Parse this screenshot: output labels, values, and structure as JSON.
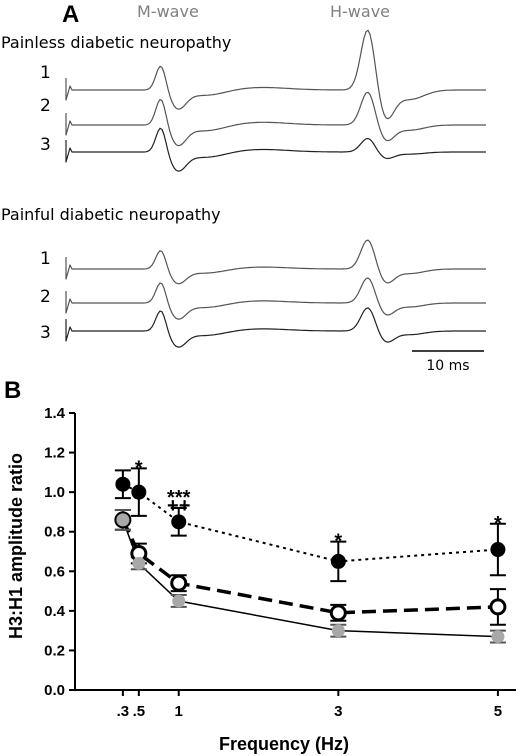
{
  "panel_a": {
    "letter": "A",
    "m_wave_label": "M-wave",
    "h_wave_label": "H-wave",
    "painless_title": "Painless diabetic neuropathy",
    "painful_title": "Painful diabetic neuropathy",
    "trace_numbers": [
      "1",
      "2",
      "3"
    ],
    "scale_label": "10 ms"
  },
  "panel_b": {
    "letter": "B"
  },
  "chart_data": {
    "type": "line",
    "xlabel": "Frequency (Hz)",
    "ylabel": "H3:H1 amplitude ratio",
    "x": [
      0.3,
      0.5,
      1,
      3,
      5
    ],
    "x_tick_labels": [
      ".3",
      ".5",
      "1",
      "3",
      "5"
    ],
    "ylim": [
      0.0,
      1.4
    ],
    "y_ticks": [
      "0.0",
      "0.2",
      "0.4",
      "0.6",
      "0.8",
      "1.0",
      "1.2",
      "1.4"
    ],
    "grid": false,
    "series": [
      {
        "marker": "filled-black",
        "line": "dotted",
        "values": [
          1.04,
          1.0,
          0.85,
          0.65,
          0.71
        ],
        "errors": [
          0.07,
          0.12,
          0.07,
          0.1,
          0.13
        ]
      },
      {
        "marker": "open-circle",
        "line": "dashed",
        "values": [
          0.86,
          0.69,
          0.54,
          0.39,
          0.42
        ],
        "errors": [
          0.05,
          0.05,
          0.04,
          0.04,
          0.09
        ]
      },
      {
        "marker": "filled-gray",
        "line": "solid",
        "values": [
          0.86,
          0.64,
          0.45,
          0.3,
          0.27
        ],
        "errors": [
          0.05,
          0.03,
          0.03,
          0.03,
          0.03
        ]
      }
    ],
    "annotations": [
      {
        "x": 0.5,
        "y": 1.12,
        "text": "*"
      },
      {
        "x": 1,
        "y": 0.97,
        "text": "***"
      },
      {
        "x": 1,
        "y": 0.93,
        "text": "++"
      },
      {
        "x": 3,
        "y": 0.75,
        "text": "*"
      },
      {
        "x": 5,
        "y": 0.84,
        "text": "*"
      }
    ]
  }
}
